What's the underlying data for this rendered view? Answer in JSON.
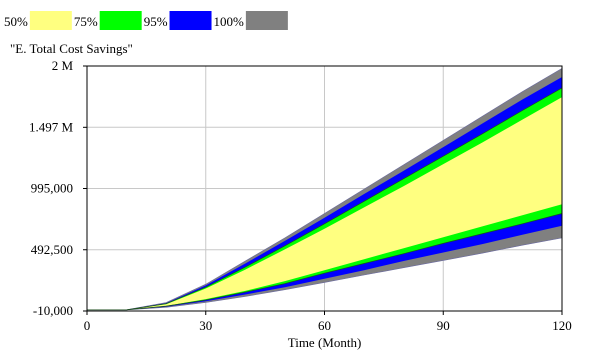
{
  "chart_data": {
    "type": "area",
    "title": "\"E. Total Cost Savings\"",
    "xlabel": "Time (Month)",
    "ylabel": "",
    "xlim": [
      0,
      120
    ],
    "ylim": [
      -10000,
      2000000
    ],
    "x_ticks": [
      0,
      30,
      60,
      90,
      120
    ],
    "x_tick_labels": [
      "0",
      "30",
      "60",
      "90",
      "120"
    ],
    "y_ticks": [
      -10000,
      492500,
      995000,
      1497000,
      2000000
    ],
    "y_tick_labels": [
      "-10,000",
      "492,500",
      "995,000",
      "1.497 M",
      "2 M"
    ],
    "grid": true,
    "legend_position": "top-left",
    "series": [
      {
        "name": "50%",
        "color": "#ffff80"
      },
      {
        "name": "75%",
        "color": "#00ff00"
      },
      {
        "name": "95%",
        "color": "#0000ff"
      },
      {
        "name": "100%",
        "color": "#808080"
      }
    ],
    "x": [
      0,
      10,
      20,
      30,
      40,
      50,
      60,
      70,
      80,
      90,
      100,
      110,
      120
    ],
    "bands": {
      "100%": {
        "lower": [
          0,
          0,
          20000,
          60000,
          110000,
          165000,
          225000,
          285000,
          345000,
          405000,
          465000,
          530000,
          590000
        ],
        "upper": [
          0,
          0,
          60000,
          210000,
          400000,
          590000,
          790000,
          990000,
          1190000,
          1390000,
          1590000,
          1790000,
          1980000
        ]
      },
      "95%": {
        "lower": [
          0,
          0,
          25000,
          70000,
          125000,
          185000,
          255000,
          325000,
          400000,
          470000,
          540000,
          615000,
          690000
        ],
        "upper": [
          0,
          0,
          55000,
          200000,
          380000,
          565000,
          755000,
          950000,
          1140000,
          1335000,
          1530000,
          1725000,
          1910000
        ]
      },
      "75%": {
        "lower": [
          0,
          0,
          30000,
          80000,
          145000,
          215000,
          300000,
          380000,
          460000,
          545000,
          625000,
          705000,
          790000
        ],
        "upper": [
          0,
          0,
          50000,
          185000,
          350000,
          525000,
          705000,
          890000,
          1075000,
          1260000,
          1445000,
          1635000,
          1820000
        ]
      },
      "50%": {
        "lower": [
          0,
          0,
          32000,
          88000,
          155000,
          235000,
          325000,
          415000,
          505000,
          595000,
          685000,
          775000,
          865000
        ],
        "upper": [
          0,
          0,
          45000,
          175000,
          330000,
          495000,
          665000,
          840000,
          1015000,
          1195000,
          1375000,
          1560000,
          1745000
        ]
      }
    }
  }
}
